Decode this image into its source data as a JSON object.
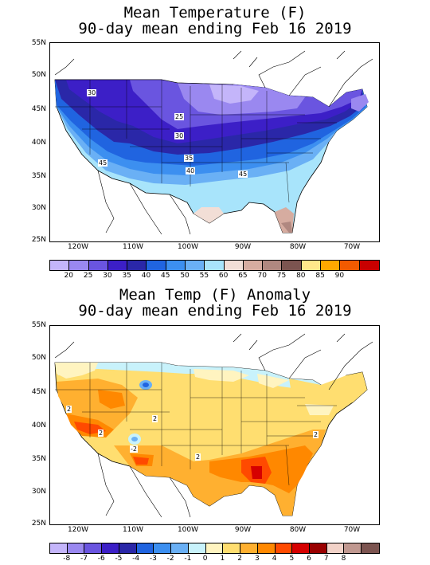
{
  "panels": [
    {
      "title_line1": "Mean Temperature (F)",
      "title_line2": "90-day mean ending Feb 16 2019",
      "lat_labels": [
        "55N",
        "50N",
        "45N",
        "40N",
        "35N",
        "30N",
        "25N"
      ],
      "lon_labels": [
        "120W",
        "110W",
        "100W",
        "90W",
        "80W",
        "70W"
      ],
      "contour_labels": [
        "30",
        "25",
        "30",
        "35",
        "40",
        "45",
        "45"
      ],
      "colorbar": {
        "labels": [
          "20",
          "25",
          "30",
          "35",
          "40",
          "45",
          "50",
          "55",
          "60",
          "65",
          "70",
          "75",
          "80",
          "85",
          "90"
        ],
        "colors": [
          "#c4b5fa",
          "#9a88f0",
          "#6a55e0",
          "#3c1fc7",
          "#2a27a8",
          "#2064e0",
          "#3c8ff0",
          "#6ab0f5",
          "#a8e4fb",
          "#f2ded6",
          "#d6aca0",
          "#b08880",
          "#7c5450",
          "#ffe88a",
          "#ffa800",
          "#f25a00",
          "#c80000"
        ]
      }
    },
    {
      "title_line1": "Mean Temp (F) Anomaly",
      "title_line2": "90-day mean ending Feb 16 2019",
      "lat_labels": [
        "55N",
        "50N",
        "45N",
        "40N",
        "35N",
        "30N",
        "25N"
      ],
      "lon_labels": [
        "120W",
        "110W",
        "100W",
        "90W",
        "80W",
        "70W"
      ],
      "contour_labels": [
        "2",
        "2",
        "-2",
        "2",
        "2",
        "2"
      ],
      "colorbar": {
        "labels": [
          "-8",
          "-7",
          "-6",
          "-5",
          "-4",
          "-3",
          "-2",
          "-1",
          "0",
          "1",
          "2",
          "3",
          "4",
          "5",
          "6",
          "7",
          "8"
        ],
        "colors": [
          "#c4b5fa",
          "#9a88f0",
          "#6a55e0",
          "#3c1fc7",
          "#2a27a8",
          "#2064e0",
          "#3c8ff0",
          "#6ab0f5",
          "#c8f2fb",
          "#fff4c0",
          "#ffde70",
          "#ffb030",
          "#ff8800",
          "#ff4a00",
          "#d60000",
          "#9a0000",
          "#f2d2c8",
          "#c09890",
          "#7c5450"
        ]
      }
    }
  ]
}
